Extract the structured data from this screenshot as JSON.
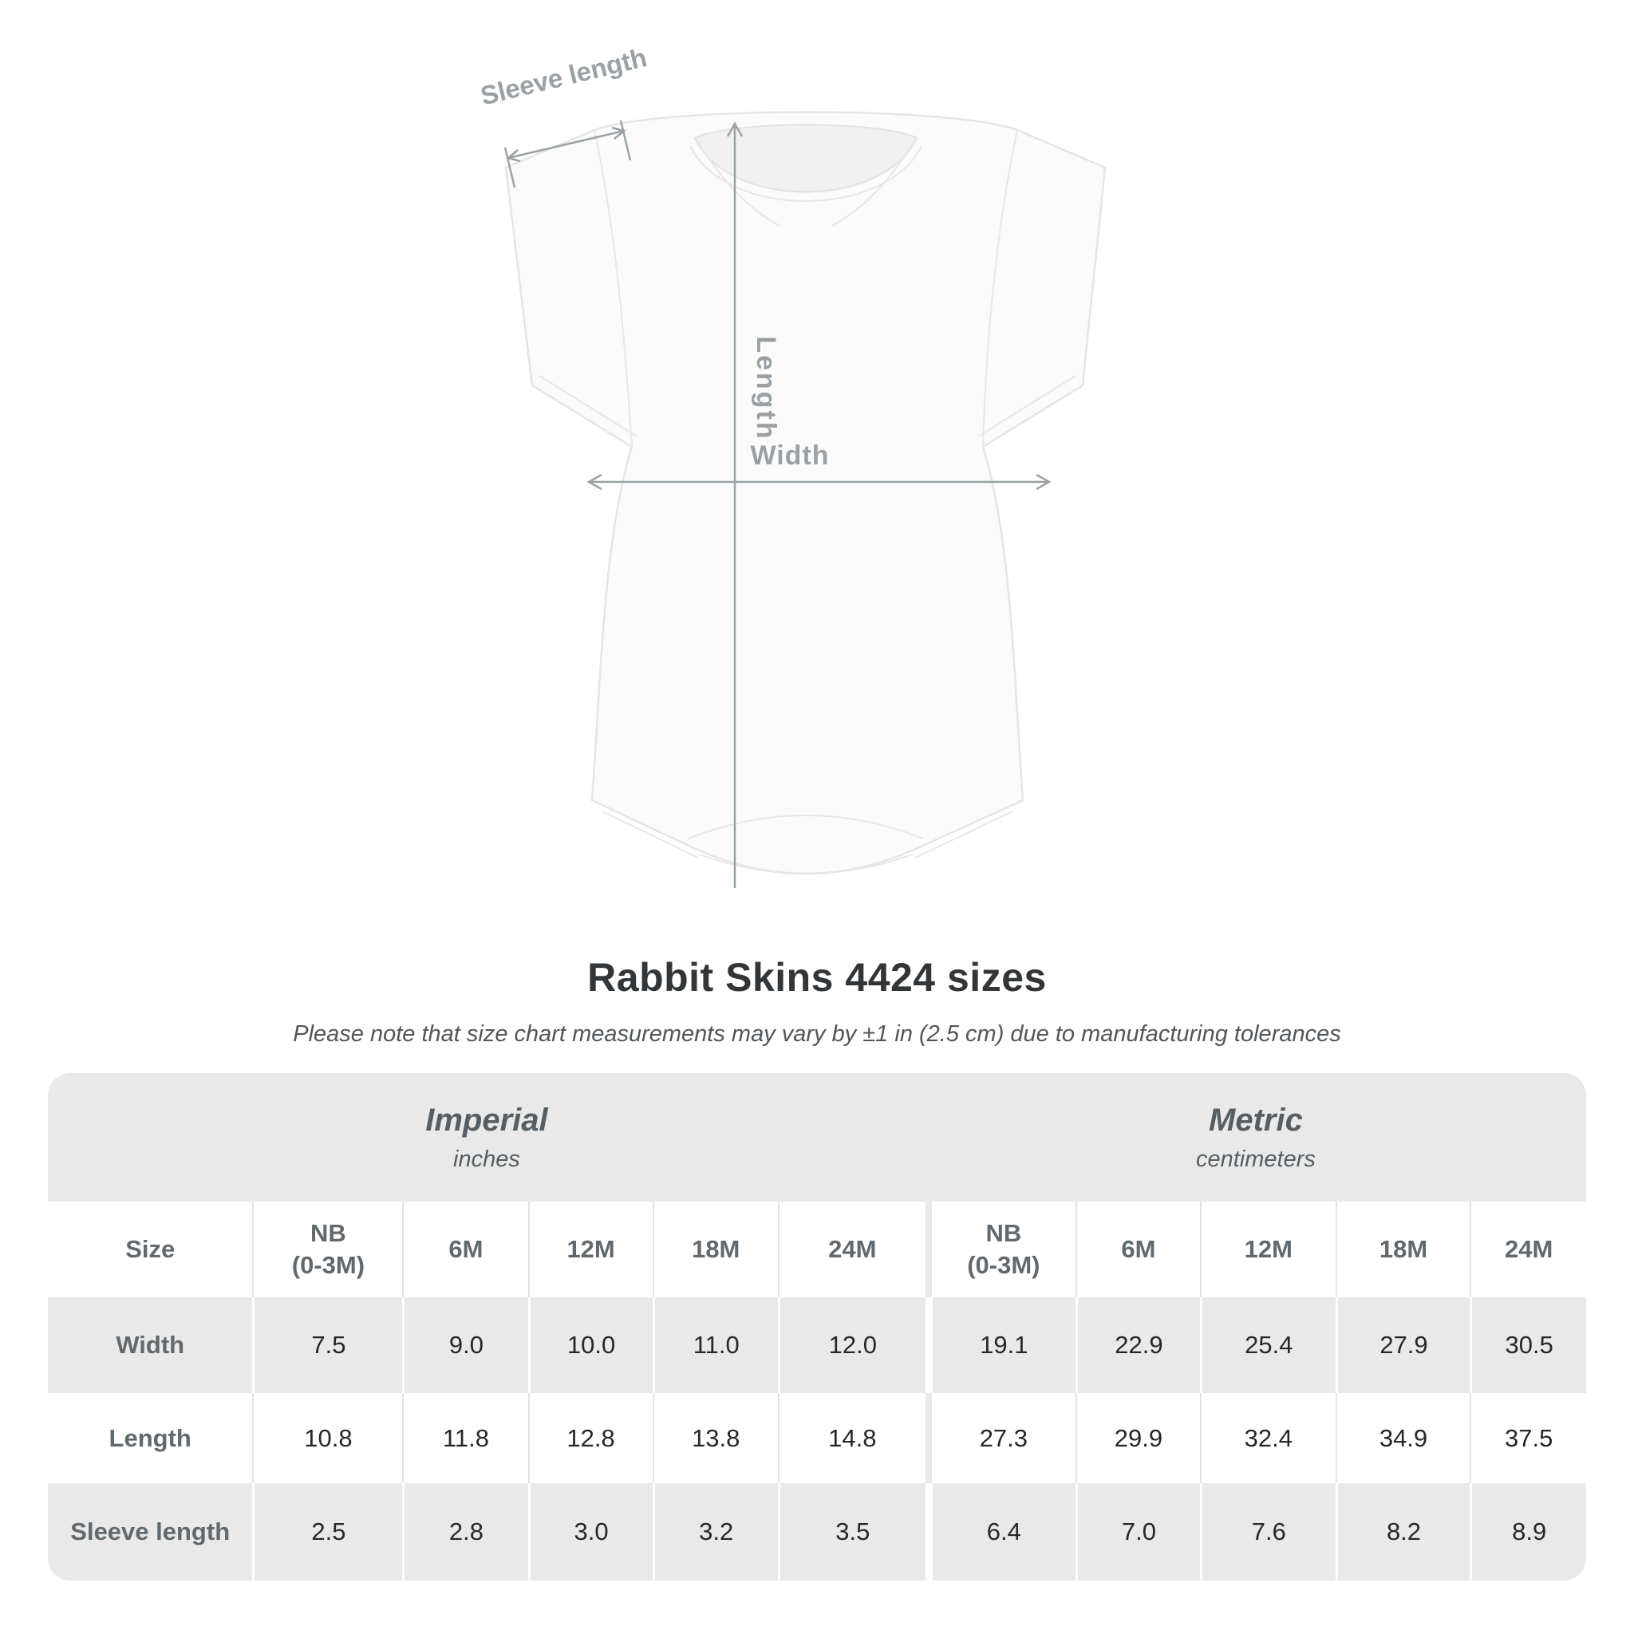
{
  "figure": {
    "sleeve_label": "Sleeve length",
    "length_label": "Length",
    "width_label": "Width",
    "annotation_color": "#9aa2a6",
    "garment": "infant-bodysuit-diagram"
  },
  "title": "Rabbit Skins 4424 sizes",
  "subtitle": "Please note that size chart measurements may vary by ±1 in (2.5 cm) due to manufacturing tolerances",
  "chart_data": {
    "type": "table",
    "title": "Rabbit Skins 4424 sizes",
    "size_header": "Size",
    "groups": [
      {
        "label": "Imperial",
        "unit": "inches"
      },
      {
        "label": "Metric",
        "unit": "centimeters"
      }
    ],
    "sizes": [
      [
        "NB",
        "(0-3M)"
      ],
      [
        "6M"
      ],
      [
        "12M"
      ],
      [
        "18M"
      ],
      [
        "24M"
      ]
    ],
    "rows": [
      {
        "label": "Width",
        "imperial": [
          "7.5",
          "9.0",
          "10.0",
          "11.0",
          "12.0"
        ],
        "metric": [
          "19.1",
          "22.9",
          "25.4",
          "27.9",
          "30.5"
        ]
      },
      {
        "label": "Length",
        "imperial": [
          "10.8",
          "11.8",
          "12.8",
          "13.8",
          "14.8"
        ],
        "metric": [
          "27.3",
          "29.9",
          "32.4",
          "34.9",
          "37.5"
        ]
      },
      {
        "label": "Sleeve length",
        "imperial": [
          "2.5",
          "2.8",
          "3.0",
          "3.2",
          "3.5"
        ],
        "metric": [
          "6.4",
          "7.0",
          "7.6",
          "8.2",
          "8.9"
        ]
      }
    ],
    "colors": {
      "band_bg": "#e9e9e9",
      "row_alt_bg": "#e9e9e9",
      "header_text": "#60696e",
      "value_text": "#24282a"
    }
  }
}
